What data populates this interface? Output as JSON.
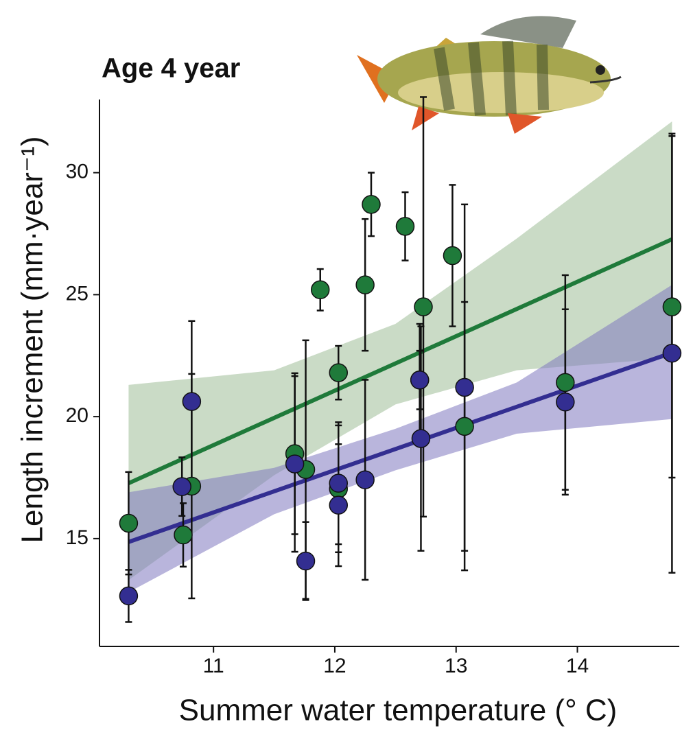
{
  "chart_data": {
    "type": "scatter",
    "title": "Age 4 year",
    "xlabel": "Summer water temperature (° C)",
    "ylabel": "Length increment (mm·year⁻¹)",
    "xlim": [
      10.06,
      14.84
    ],
    "ylim": [
      10.58,
      33.0
    ],
    "xticks": [
      11,
      12,
      13,
      14
    ],
    "yticks": [
      15,
      20,
      25,
      30
    ],
    "grid": false,
    "series": [
      {
        "color": "#1f7a3a",
        "band_color": "#9fbd98",
        "x": [
          10.3,
          10.75,
          10.82,
          11.67,
          11.76,
          11.88,
          12.03,
          12.03,
          12.25,
          12.3,
          12.58,
          12.7,
          12.73,
          12.97,
          13.07,
          13.9,
          14.78
        ],
        "values": [
          15.63,
          15.15,
          17.15,
          18.48,
          17.83,
          25.2,
          21.8,
          17.04,
          25.4,
          28.7,
          27.8,
          21.5,
          24.5,
          26.6,
          19.6,
          21.4,
          24.5
        ],
        "errors": [
          2.1,
          1.3,
          4.6,
          3.3,
          5.3,
          0.85,
          1.1,
          2.6,
          2.7,
          1.3,
          1.4,
          2.3,
          8.6,
          2.9,
          5.1,
          4.4,
          7.0
        ],
        "fit_x": [
          10.3,
          14.78
        ],
        "fit_y": [
          17.27,
          27.27
        ],
        "band_x": [
          10.3,
          11.5,
          12.5,
          13.5,
          14.78
        ],
        "band_lower": [
          13.3,
          17.6,
          20.5,
          21.9,
          22.4
        ],
        "band_upper": [
          21.3,
          21.9,
          23.8,
          27.3,
          32.1
        ]
      },
      {
        "color": "#332e91",
        "band_color": "#7f78c0",
        "x": [
          10.3,
          10.74,
          10.82,
          11.67,
          11.76,
          12.03,
          12.03,
          12.25,
          12.7,
          12.71,
          13.07,
          13.9,
          14.78
        ],
        "values": [
          12.65,
          17.13,
          20.62,
          18.06,
          14.08,
          17.27,
          16.37,
          17.41,
          21.5,
          19.1,
          21.2,
          20.6,
          22.6
        ],
        "errors": [
          1.07,
          1.2,
          3.3,
          3.6,
          1.6,
          2.5,
          2.5,
          4.1,
          1.2,
          4.6,
          7.5,
          3.8,
          9.0
        ],
        "fit_x": [
          10.3,
          14.78
        ],
        "fit_y": [
          14.86,
          22.62
        ],
        "band_x": [
          10.3,
          11.5,
          12.5,
          13.5,
          14.78
        ],
        "band_lower": [
          12.8,
          16.0,
          17.8,
          19.3,
          19.9
        ],
        "band_upper": [
          16.9,
          17.9,
          19.5,
          21.4,
          25.4
        ]
      }
    ]
  }
}
